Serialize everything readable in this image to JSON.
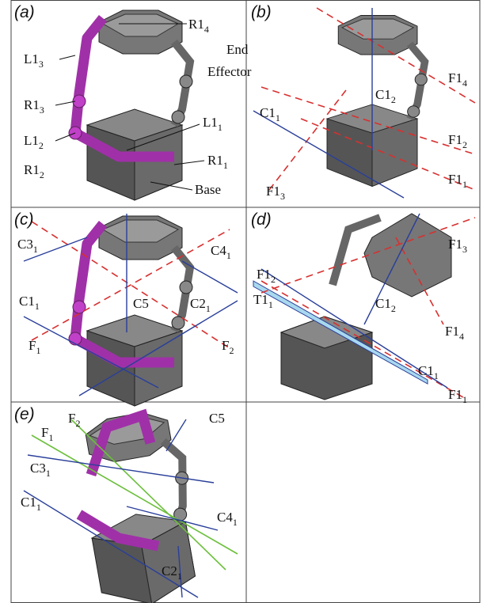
{
  "panels": [
    {
      "label": "(a)",
      "annotations": [
        {
          "text": "R1",
          "sub": "4"
        },
        {
          "text": "L1",
          "sub": "3"
        },
        {
          "text": "End",
          "sub": ""
        },
        {
          "text": "Effector",
          "sub": ""
        },
        {
          "text": "R1",
          "sub": "3"
        },
        {
          "text": "L1",
          "sub": "2"
        },
        {
          "text": "L1",
          "sub": "1"
        },
        {
          "text": "R1",
          "sub": "2"
        },
        {
          "text": "R1",
          "sub": "1"
        },
        {
          "text": "Base",
          "sub": ""
        }
      ]
    },
    {
      "label": "(b)",
      "annotations": [
        {
          "text": "F1",
          "sub": "4"
        },
        {
          "text": "C1",
          "sub": "2"
        },
        {
          "text": "C1",
          "sub": "1"
        },
        {
          "text": "F1",
          "sub": "2"
        },
        {
          "text": "F1",
          "sub": "1"
        },
        {
          "text": "F1",
          "sub": "3"
        }
      ]
    },
    {
      "label": "(c)",
      "annotations": [
        {
          "text": "C3",
          "sub": "1"
        },
        {
          "text": "C4",
          "sub": "1"
        },
        {
          "text": "C1",
          "sub": "1"
        },
        {
          "text": "C5",
          "sub": ""
        },
        {
          "text": "C2",
          "sub": "1"
        },
        {
          "text": "F",
          "sub": "1"
        },
        {
          "text": "F",
          "sub": "2"
        }
      ]
    },
    {
      "label": "(d)",
      "annotations": [
        {
          "text": "F1",
          "sub": "3"
        },
        {
          "text": "F1",
          "sub": "2"
        },
        {
          "text": "T1",
          "sub": "1"
        },
        {
          "text": "C1",
          "sub": "2"
        },
        {
          "text": "F1",
          "sub": "4"
        },
        {
          "text": "C1",
          "sub": "1"
        },
        {
          "text": "F1",
          "sub": "1"
        }
      ]
    },
    {
      "label": "(e)",
      "annotations": [
        {
          "text": "F",
          "sub": "1"
        },
        {
          "text": "F",
          "sub": "2"
        },
        {
          "text": "C5",
          "sub": ""
        },
        {
          "text": "C3",
          "sub": "1"
        },
        {
          "text": "C1",
          "sub": "1"
        },
        {
          "text": "C4",
          "sub": "1"
        },
        {
          "text": "C2",
          "sub": "1"
        }
      ]
    }
  ]
}
